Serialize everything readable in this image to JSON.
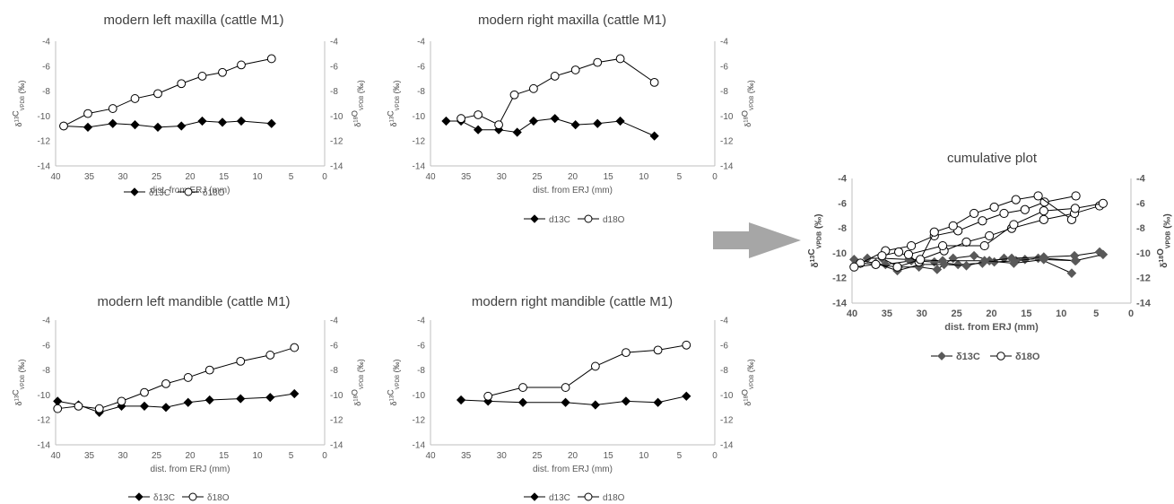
{
  "colors": {
    "carbon": "#000000",
    "oxygen_fill": "#ffffff",
    "cumulative_carbon": "#595959",
    "axis": "#bfbfbf",
    "arrow": "#a6a6a6"
  },
  "arrow_icon": "right-arrow-icon",
  "chart_data": [
    {
      "id": "mlmx",
      "type": "line",
      "title": "modern left maxilla (cattle M1)",
      "xlabel": "dist. from ERJ (mm)",
      "ylabel_left": "δ13CVPDB (‰)",
      "ylabel_right": "δ18OVPDB (‰)",
      "xlim": [
        40,
        0
      ],
      "ylim": [
        -14,
        -4
      ],
      "x_reversed": true,
      "x_ticks": [
        40,
        35,
        30,
        25,
        20,
        15,
        10,
        5,
        0
      ],
      "y_ticks": [
        -4,
        -6,
        -8,
        -10,
        -12,
        -14
      ],
      "legend_position": "bottom",
      "series": [
        {
          "name": "δ13C",
          "marker": "diamond-filled",
          "x": [
            38.8,
            35.2,
            31.5,
            28.2,
            24.8,
            21.3,
            18.2,
            15.2,
            12.4,
            7.9
          ],
          "y": [
            -10.8,
            -10.9,
            -10.6,
            -10.7,
            -10.9,
            -10.8,
            -10.4,
            -10.5,
            -10.4,
            -10.6
          ]
        },
        {
          "name": "δ18O",
          "marker": "circle-open",
          "x": [
            38.8,
            35.2,
            31.5,
            28.2,
            24.8,
            21.3,
            18.2,
            15.2,
            12.4,
            7.9
          ],
          "y": [
            -10.8,
            -9.8,
            -9.4,
            -8.6,
            -8.2,
            -7.4,
            -6.8,
            -6.5,
            -5.9,
            -5.4
          ]
        }
      ]
    },
    {
      "id": "mrmx",
      "type": "line",
      "title": "modern right maxilla (cattle M1)",
      "xlabel": "dist. from ERJ (mm)",
      "ylabel_left": "δ13CVPDB (‰)",
      "ylabel_right": "δ18OVPDB (‰)",
      "xlim": [
        40,
        0
      ],
      "ylim": [
        -14,
        -4
      ],
      "x_reversed": true,
      "x_ticks": [
        40,
        35,
        30,
        25,
        20,
        15,
        10,
        5,
        0
      ],
      "y_ticks": [
        -4,
        -6,
        -8,
        -10,
        -12,
        -14
      ],
      "legend_position": "bottom",
      "series": [
        {
          "name": "d13C",
          "marker": "diamond-filled",
          "x": [
            37.8,
            35.7,
            33.3,
            30.4,
            27.8,
            25.5,
            22.5,
            19.6,
            16.5,
            13.3,
            8.5
          ],
          "y": [
            -10.4,
            -10.4,
            -11.1,
            -11.1,
            -11.3,
            -10.4,
            -10.2,
            -10.7,
            -10.6,
            -10.4,
            -11.6
          ]
        },
        {
          "name": "d18O",
          "marker": "circle-open",
          "x": [
            35.7,
            33.3,
            30.4,
            28.2,
            25.5,
            22.5,
            19.6,
            16.5,
            13.3,
            8.5
          ],
          "y": [
            -10.2,
            -9.9,
            -10.7,
            -8.3,
            -7.8,
            -6.8,
            -6.3,
            -5.7,
            -5.4,
            -7.3
          ]
        }
      ]
    },
    {
      "id": "mlmd",
      "type": "line",
      "title": "modern left mandible (cattle M1)",
      "xlabel": "dist. from ERJ (mm)",
      "ylabel_left": "δ13CVPDB (‰)",
      "ylabel_right": "δ18OVPDB (‰)",
      "xlim": [
        40,
        0
      ],
      "ylim": [
        -14,
        -4
      ],
      "x_reversed": true,
      "x_ticks": [
        40,
        35,
        30,
        25,
        20,
        15,
        10,
        5,
        0
      ],
      "y_ticks": [
        -4,
        -6,
        -8,
        -10,
        -12,
        -14
      ],
      "legend_position": "bottom",
      "series": [
        {
          "name": "δ13C",
          "marker": "diamond-filled",
          "x": [
            39.7,
            36.6,
            33.5,
            30.2,
            26.8,
            23.6,
            20.3,
            17.1,
            12.5,
            8.1,
            4.5
          ],
          "y": [
            -10.5,
            -10.8,
            -11.4,
            -10.9,
            -10.9,
            -11.0,
            -10.6,
            -10.4,
            -10.3,
            -10.2,
            -9.9
          ]
        },
        {
          "name": "δ18O",
          "marker": "circle-open",
          "x": [
            39.7,
            36.6,
            33.5,
            30.2,
            26.8,
            23.6,
            20.3,
            17.1,
            12.5,
            8.1,
            4.5
          ],
          "y": [
            -11.1,
            -10.9,
            -11.1,
            -10.5,
            -9.8,
            -9.1,
            -8.6,
            -8.0,
            -7.3,
            -6.8,
            -6.2
          ]
        }
      ]
    },
    {
      "id": "mrmd",
      "type": "line",
      "title": "modern right mandible (cattle M1)",
      "xlabel": "dist. from ERJ (mm)",
      "ylabel_left": "δ13CVPDB (‰)",
      "ylabel_right": "δ18OVPDB (‰)",
      "xlim": [
        40,
        0
      ],
      "ylim": [
        -14,
        -4
      ],
      "x_reversed": true,
      "x_ticks": [
        40,
        35,
        30,
        25,
        20,
        15,
        10,
        5,
        0
      ],
      "y_ticks": [
        -4,
        -6,
        -8,
        -10,
        -12,
        -14
      ],
      "legend_position": "bottom",
      "series": [
        {
          "name": "d13C",
          "marker": "diamond-filled",
          "x": [
            35.7,
            31.9,
            27.0,
            21.0,
            16.8,
            12.5,
            8.0,
            4.0
          ],
          "y": [
            -10.4,
            -10.5,
            -10.6,
            -10.6,
            -10.8,
            -10.5,
            -10.6,
            -10.1
          ]
        },
        {
          "name": "d18O",
          "marker": "circle-open",
          "x": [
            31.9,
            27.0,
            21.0,
            16.8,
            12.5,
            8.0,
            4.0
          ],
          "y": [
            -10.1,
            -9.4,
            -9.4,
            -7.7,
            -6.6,
            -6.4,
            -6.0
          ]
        }
      ]
    },
    {
      "id": "cum",
      "type": "line",
      "title": "cumulative plot",
      "xlabel": "dist. from ERJ (mm)",
      "ylabel_left": "δ13CVPDB (‰)",
      "ylabel_right": "δ18OVPDB (‰)",
      "xlim": [
        40,
        0
      ],
      "ylim": [
        -14,
        -4
      ],
      "x_reversed": true,
      "x_ticks": [
        40,
        35,
        30,
        25,
        20,
        15,
        10,
        5,
        0
      ],
      "y_ticks": [
        -4,
        -6,
        -8,
        -10,
        -12,
        -14
      ],
      "legend_position": "bottom",
      "series": [
        {
          "name": "δ13C",
          "marker": "diamond-filled",
          "legend": true,
          "x": [],
          "y": []
        },
        {
          "name": "δ18O",
          "marker": "circle-open",
          "legend": true,
          "x": [],
          "y": []
        },
        {
          "name": "",
          "marker": "diamond-filled",
          "x": [
            38.8,
            35.2,
            31.5,
            28.2,
            24.8,
            21.3,
            18.2,
            15.2,
            12.4,
            7.9
          ],
          "y": [
            -10.8,
            -10.9,
            -10.6,
            -10.7,
            -10.9,
            -10.8,
            -10.4,
            -10.5,
            -10.4,
            -10.6
          ]
        },
        {
          "name": "",
          "marker": "diamond-filled",
          "x": [
            37.8,
            35.7,
            33.3,
            30.4,
            27.8,
            25.5,
            22.5,
            19.6,
            16.5,
            13.3,
            8.5
          ],
          "y": [
            -10.4,
            -10.4,
            -11.1,
            -11.1,
            -11.3,
            -10.4,
            -10.2,
            -10.7,
            -10.6,
            -10.4,
            -11.6
          ]
        },
        {
          "name": "",
          "marker": "diamond-filled",
          "x": [
            39.7,
            36.6,
            33.5,
            30.2,
            26.8,
            23.6,
            20.3,
            17.1,
            12.5,
            8.1,
            4.5
          ],
          "y": [
            -10.5,
            -10.8,
            -11.4,
            -10.9,
            -10.9,
            -11.0,
            -10.6,
            -10.4,
            -10.3,
            -10.2,
            -9.9
          ]
        },
        {
          "name": "",
          "marker": "diamond-filled",
          "x": [
            35.7,
            31.9,
            27.0,
            21.0,
            16.8,
            12.5,
            8.0,
            4.0
          ],
          "y": [
            -10.4,
            -10.5,
            -10.6,
            -10.6,
            -10.8,
            -10.5,
            -10.6,
            -10.1
          ]
        },
        {
          "name": "",
          "marker": "circle-open",
          "x": [
            38.8,
            35.2,
            31.5,
            28.2,
            24.8,
            21.3,
            18.2,
            15.2,
            12.4,
            7.9
          ],
          "y": [
            -10.8,
            -9.8,
            -9.4,
            -8.6,
            -8.2,
            -7.4,
            -6.8,
            -6.5,
            -5.9,
            -5.4
          ]
        },
        {
          "name": "",
          "marker": "circle-open",
          "x": [
            35.7,
            33.3,
            30.4,
            28.2,
            25.5,
            22.5,
            19.6,
            16.5,
            13.3,
            8.5
          ],
          "y": [
            -10.2,
            -9.9,
            -10.7,
            -8.3,
            -7.8,
            -6.8,
            -6.3,
            -5.7,
            -5.4,
            -7.3
          ]
        },
        {
          "name": "",
          "marker": "circle-open",
          "x": [
            39.7,
            36.6,
            33.5,
            30.2,
            26.8,
            23.6,
            20.3,
            17.1,
            12.5,
            8.1,
            4.5
          ],
          "y": [
            -11.1,
            -10.9,
            -11.1,
            -10.5,
            -9.8,
            -9.1,
            -8.6,
            -8.0,
            -7.3,
            -6.8,
            -6.2
          ]
        },
        {
          "name": "",
          "marker": "circle-open",
          "x": [
            31.9,
            27.0,
            21.0,
            16.8,
            12.5,
            8.0,
            4.0
          ],
          "y": [
            -10.1,
            -9.4,
            -9.4,
            -7.7,
            -6.6,
            -6.4,
            -6.0
          ]
        }
      ]
    }
  ]
}
